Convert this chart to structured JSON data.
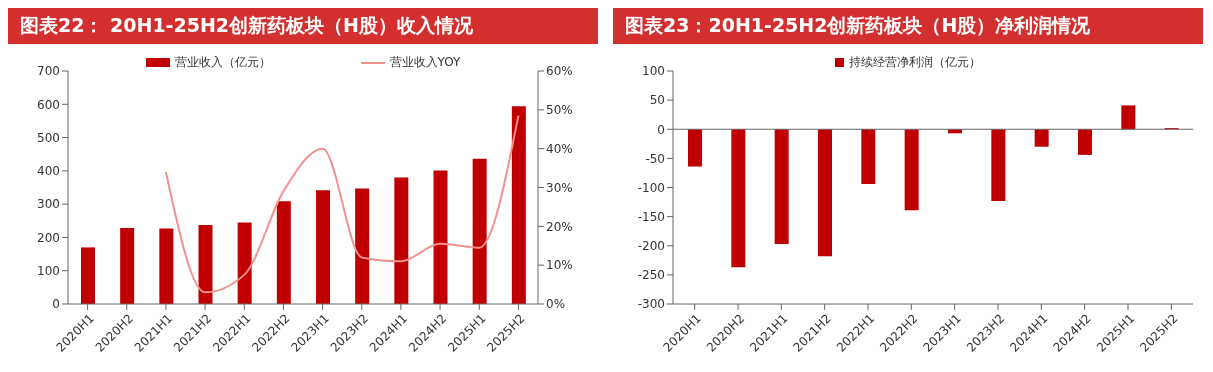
{
  "chart_data": [
    {
      "type": "bar",
      "title": "图表22： 20H1-25H2创新药板块（H股）收入情况",
      "categories": [
        "2020H1",
        "2020H2",
        "2021H1",
        "2021H2",
        "2022H1",
        "2022H2",
        "2023H1",
        "2023H2",
        "2024H1",
        "2024H2",
        "2025H1",
        "2025H2"
      ],
      "series": [
        {
          "name": "营业收入（亿元）",
          "color": "#c00000",
          "values": [
            170,
            228,
            227,
            237,
            245,
            309,
            342,
            347,
            380,
            401,
            436,
            594
          ]
        },
        {
          "name": "营业收入YOY",
          "type": "line",
          "axis": "y2",
          "color": "#f4908e",
          "values": [
            null,
            null,
            34,
            3,
            7.5,
            29,
            40,
            12,
            11,
            15.5,
            14.5,
            48.5
          ]
        }
      ],
      "ylim": [
        0,
        700
      ],
      "yticks": [
        0,
        100,
        200,
        300,
        400,
        500,
        600,
        700
      ],
      "y2lim": [
        0,
        60
      ],
      "y2ticks": [
        {
          "value": 0,
          "label": "0%"
        },
        {
          "value": 10,
          "label": "10%"
        },
        {
          "value": 20,
          "label": "20%"
        },
        {
          "value": 30,
          "label": "30%"
        },
        {
          "value": 40,
          "label": "40%"
        },
        {
          "value": 50,
          "label": "50%"
        },
        {
          "value": 60,
          "label": "60%"
        }
      ],
      "legend": "top",
      "marker": "none"
    },
    {
      "type": "bar",
      "title": "图表23：20H1-25H2创新药板块（H股）净利润情况",
      "categories": [
        "2020H1",
        "2020H2",
        "2021H1",
        "2021H2",
        "2022H1",
        "2022H2",
        "2023H1",
        "2023H2",
        "2024H1",
        "2024H2",
        "2025H1",
        "2025H2"
      ],
      "series": [
        {
          "name": "持续经营净利润（亿元）",
          "color": "#c00000",
          "values": [
            -64,
            -237,
            -197,
            -218,
            -94,
            -139,
            -7,
            -123,
            -30,
            -44,
            41,
            2
          ]
        }
      ],
      "ylim": [
        -300,
        100
      ],
      "yticks": [
        -300,
        -250,
        -200,
        -150,
        -100,
        -50,
        0,
        50,
        100
      ],
      "legend": "top"
    }
  ]
}
